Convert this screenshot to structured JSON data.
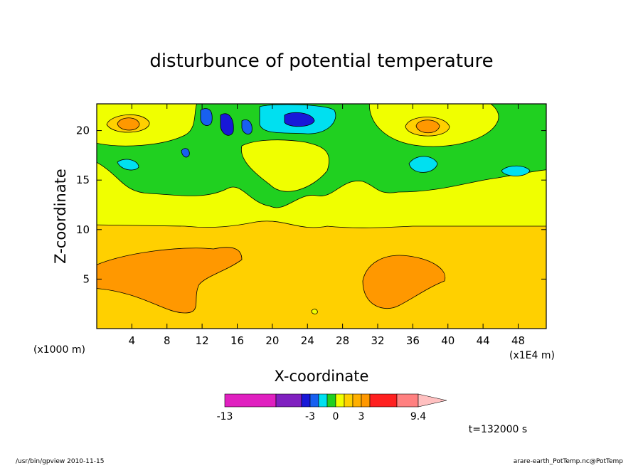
{
  "chart_data": {
    "type": "contour",
    "title": "disturbunce of potential temperature",
    "x_label": "X-coordinate",
    "y_label": "Z-coordinate",
    "x_unit_label": "(x1E4 m)",
    "y_unit_label": "(x1000 m)",
    "xlim": [
      0,
      51.2
    ],
    "xticks": [
      4,
      8,
      12,
      16,
      20,
      24,
      28,
      32,
      36,
      40,
      44,
      48
    ],
    "ylim": [
      0,
      22.7
    ],
    "yticks": [
      5,
      10,
      15,
      20
    ],
    "colorbar": {
      "colors": [
        "#e020c0",
        "#8020c0",
        "#1818d8",
        "#1860f0",
        "#00e0f0",
        "#20d020",
        "#f0ff00",
        "#ffd000",
        "#ffb000",
        "#ff9800",
        "#ff2020",
        "#ff8080",
        "#ffc0c0"
      ],
      "ticks": [
        -13,
        -3,
        0,
        3,
        9.4
      ]
    },
    "annotation": "t=132000 s",
    "footer_left": "/usr/bin/gpview  2010-11-15",
    "footer_right": "arare-earth_PotTemp.nc@PotTemp"
  }
}
